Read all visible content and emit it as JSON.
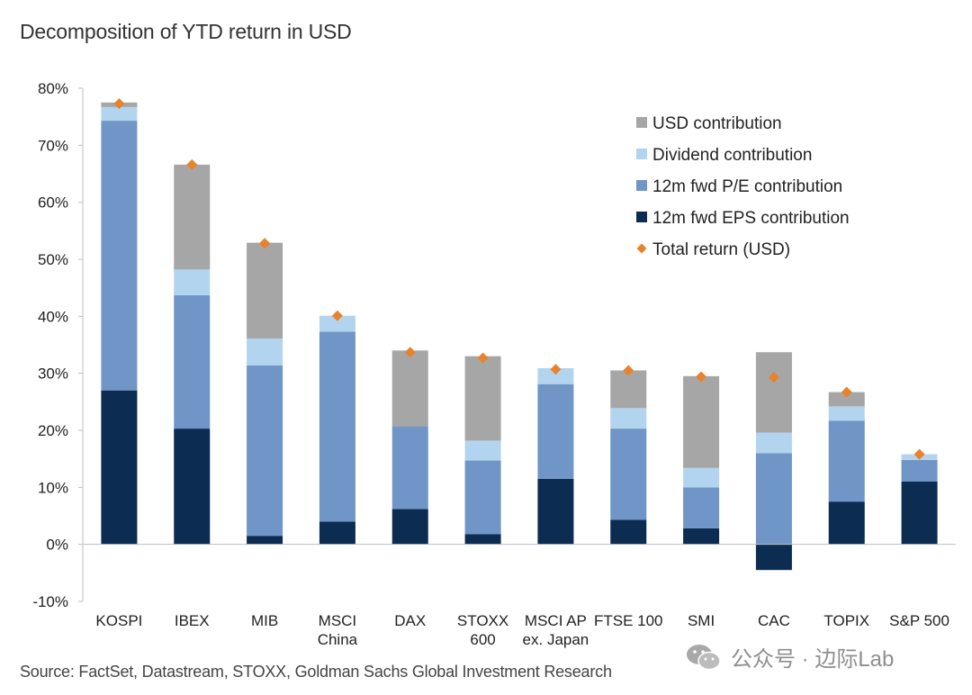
{
  "title": "Decomposition of YTD return in USD",
  "source": "Source: FactSet, Datastream, STOXX, Goldman Sachs Global Investment Research",
  "watermark": {
    "text": "公众号 · 边际Lab",
    "icon": "wechat-icon"
  },
  "colors": {
    "usd": "#a6a6a6",
    "dividend": "#b3d4ef",
    "pe": "#6f96c6",
    "eps": "#0c2c52",
    "total": "#e8822b",
    "axis": "#bfbfbf"
  },
  "chart_data": {
    "type": "bar",
    "stacked": true,
    "title": "Decomposition of YTD return in USD",
    "xlabel": "",
    "ylabel": "",
    "ylim": [
      -10,
      80
    ],
    "yticks": [
      -10,
      0,
      10,
      20,
      30,
      40,
      50,
      60,
      70,
      80
    ],
    "ytick_labels": [
      "-10%",
      "0%",
      "10%",
      "20%",
      "30%",
      "40%",
      "50%",
      "60%",
      "70%",
      "80%"
    ],
    "categories": [
      "KOSPI",
      "IBEX",
      "MIB",
      "MSCI China",
      "DAX",
      "STOXX 600",
      "MSCI AP ex. Japan",
      "FTSE 100",
      "SMI",
      "CAC",
      "TOPIX",
      "S&P 500"
    ],
    "category_lines": [
      [
        "KOSPI"
      ],
      [
        "IBEX"
      ],
      [
        "MIB"
      ],
      [
        "MSCI",
        "China"
      ],
      [
        "DAX"
      ],
      [
        "STOXX",
        "600"
      ],
      [
        "MSCI AP",
        "ex. Japan"
      ],
      [
        "FTSE 100"
      ],
      [
        "SMI"
      ],
      [
        "CAC"
      ],
      [
        "TOPIX"
      ],
      [
        "S&P 500"
      ]
    ],
    "series": [
      {
        "name": "12m fwd EPS contribution",
        "key": "eps",
        "values": [
          27,
          20.3,
          1.5,
          4,
          6.2,
          1.8,
          11.5,
          4.3,
          2.8,
          -4.5,
          7.5,
          11
        ]
      },
      {
        "name": "12m fwd P/E contribution",
        "key": "pe",
        "values": [
          47.3,
          23.4,
          29.9,
          33.3,
          14.5,
          12.9,
          16.6,
          16,
          7.2,
          16,
          14.2,
          3.8
        ]
      },
      {
        "name": "Dividend contribution",
        "key": "dividend",
        "values": [
          2.4,
          4.5,
          4.7,
          2.8,
          0,
          3.5,
          2.8,
          3.6,
          3.4,
          3.6,
          2.5,
          1
        ]
      },
      {
        "name": "USD contribution",
        "key": "usd",
        "values": [
          0.8,
          18.4,
          16.8,
          0,
          13.3,
          14.8,
          0,
          6.6,
          16.1,
          14.1,
          2.5,
          0
        ]
      }
    ],
    "total_return": {
      "name": "Total return (USD)",
      "values": [
        77.3,
        66.6,
        52.8,
        40.1,
        33.7,
        32.7,
        30.7,
        30.5,
        29.4,
        29.3,
        26.7,
        15.8
      ]
    },
    "legend": [
      {
        "label": "USD contribution",
        "key": "usd",
        "marker": "square"
      },
      {
        "label": "Dividend contribution",
        "key": "dividend",
        "marker": "square"
      },
      {
        "label": "12m fwd P/E contribution",
        "key": "pe",
        "marker": "square"
      },
      {
        "label": "12m fwd EPS contribution",
        "key": "eps",
        "marker": "square"
      },
      {
        "label": "Total return (USD)",
        "key": "total",
        "marker": "diamond"
      }
    ],
    "legend_position": "top-right",
    "grid": false
  }
}
